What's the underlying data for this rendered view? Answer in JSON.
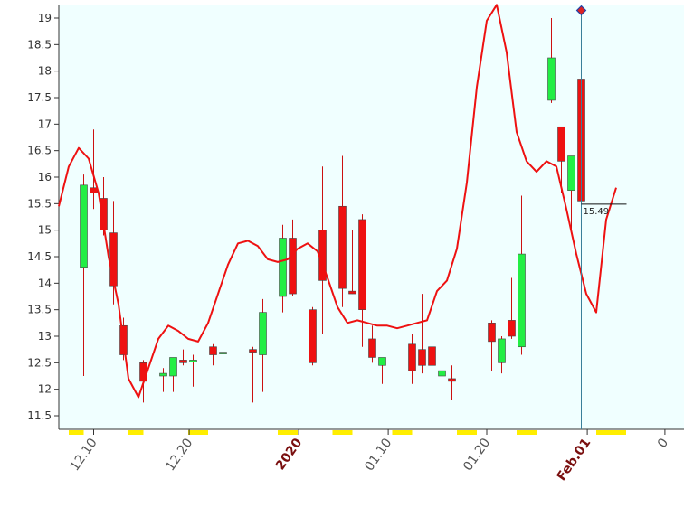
{
  "colors": {
    "plot_bg": "#f0ffff",
    "axis": "#333333",
    "up": "#22ee44",
    "down": "#ee1111",
    "wick": "#cc1111",
    "ma_line": "#ee1111",
    "cursor_line": "#3a7f9a",
    "marker": "#dd2222",
    "marker_edge": "#2244aa",
    "highlight": "#ffee00"
  },
  "chart_data": {
    "type": "candlestick",
    "title": "",
    "xlabel": "",
    "ylabel": "",
    "ylim": [
      11.25,
      19.25
    ],
    "y_ticks": [
      11.5,
      12,
      12.5,
      13,
      13.5,
      14,
      14.5,
      15,
      15.5,
      16,
      16.5,
      17,
      17.5,
      18,
      18.5,
      19
    ],
    "y_tick_labels": [
      "11.5",
      "12",
      "12.5",
      "13",
      "13.5",
      "14",
      "14.5",
      "15",
      "15.5",
      "16",
      "16.5",
      "17",
      "17.5",
      "18",
      "18.5",
      "19"
    ],
    "x_ticks": [
      {
        "label": "12.10",
        "major": false
      },
      {
        "label": "12.20",
        "major": false
      },
      {
        "label": "2020",
        "major": true
      },
      {
        "label": "01.10",
        "major": false
      },
      {
        "label": "01.20",
        "major": false
      },
      {
        "label": "Feb.01",
        "major": true
      },
      {
        "label": "0",
        "major": false
      }
    ],
    "candles": [
      {
        "open": 14.3,
        "high": 16.05,
        "low": 12.25,
        "close": 15.85
      },
      {
        "open": 15.8,
        "high": 16.9,
        "low": 15.4,
        "close": 15.7
      },
      {
        "open": 15.6,
        "high": 16.0,
        "low": 14.9,
        "close": 15.0
      },
      {
        "open": 14.95,
        "high": 15.55,
        "low": 13.6,
        "close": 13.95
      },
      {
        "open": 13.2,
        "high": 13.35,
        "low": 12.55,
        "close": 12.65
      },
      {
        "open": 12.5,
        "high": 12.55,
        "low": 11.75,
        "close": 12.15
      },
      {
        "open": 12.25,
        "high": 12.4,
        "low": 11.95,
        "close": 12.3
      },
      {
        "open": 12.25,
        "high": 12.6,
        "low": 11.95,
        "close": 12.6
      },
      {
        "open": 12.55,
        "high": 12.75,
        "low": 12.45,
        "close": 12.5
      },
      {
        "open": 12.55,
        "high": 12.65,
        "low": 12.05,
        "close": 12.55
      },
      {
        "open": 12.8,
        "high": 12.85,
        "low": 12.45,
        "close": 12.65
      },
      {
        "open": 12.7,
        "high": 12.8,
        "low": 12.55,
        "close": 12.7
      },
      {
        "open": 12.75,
        "high": 12.8,
        "low": 11.75,
        "close": 12.7
      },
      {
        "open": 12.65,
        "high": 13.7,
        "low": 11.95,
        "close": 13.45
      },
      {
        "open": 13.75,
        "high": 15.1,
        "low": 13.45,
        "close": 14.85
      },
      {
        "open": 14.85,
        "high": 15.2,
        "low": 13.75,
        "close": 13.8
      },
      {
        "open": 13.5,
        "high": 13.55,
        "low": 12.45,
        "close": 12.5
      },
      {
        "open": 15.0,
        "high": 16.2,
        "low": 13.05,
        "close": 14.05
      },
      {
        "open": 15.45,
        "high": 16.4,
        "low": 13.55,
        "close": 13.9
      },
      {
        "open": 13.85,
        "high": 15.0,
        "low": 13.8,
        "close": 13.8
      },
      {
        "open": 15.2,
        "high": 15.3,
        "low": 12.8,
        "close": 13.5
      },
      {
        "open": 12.95,
        "high": 13.2,
        "low": 12.5,
        "close": 12.6
      },
      {
        "open": 12.45,
        "high": 12.6,
        "low": 12.1,
        "close": 12.6
      },
      {
        "open": 12.85,
        "high": 13.05,
        "low": 12.1,
        "close": 12.35
      },
      {
        "open": 12.75,
        "high": 13.8,
        "low": 12.3,
        "close": 12.45
      },
      {
        "open": 12.8,
        "high": 12.85,
        "low": 11.95,
        "close": 12.45
      },
      {
        "open": 12.25,
        "high": 12.4,
        "low": 11.8,
        "close": 12.35
      },
      {
        "open": 12.2,
        "high": 12.45,
        "low": 11.8,
        "close": 12.15
      },
      {
        "open": 13.25,
        "high": 13.3,
        "low": 12.35,
        "close": 12.9
      },
      {
        "open": 12.5,
        "high": 13.0,
        "low": 12.3,
        "close": 12.95
      },
      {
        "open": 13.3,
        "high": 14.1,
        "low": 12.95,
        "close": 13.0
      },
      {
        "open": 12.8,
        "high": 15.65,
        "low": 12.65,
        "close": 14.55
      },
      {
        "open": 17.45,
        "high": 19.0,
        "low": 17.4,
        "close": 18.25
      },
      {
        "open": 16.95,
        "high": 16.95,
        "low": 15.7,
        "close": 16.3
      },
      {
        "open": 15.75,
        "high": 16.4,
        "low": 14.95,
        "close": 16.4
      },
      {
        "open": 17.85,
        "high": 18.3,
        "low": 15.5,
        "close": 15.55
      }
    ],
    "candle_slots": [
      2,
      3,
      4,
      5,
      6,
      8,
      10,
      11,
      12,
      13,
      15,
      16,
      19,
      20,
      22,
      23,
      25,
      26,
      28,
      29,
      30,
      31,
      32,
      35,
      36,
      37,
      38,
      39,
      43,
      44,
      45,
      46,
      49,
      50,
      51,
      52
    ],
    "x_slot_range": [
      -0.5,
      59.0
    ],
    "x_tick_slots": [
      3.0,
      12.6,
      23.6,
      32.6,
      42.5,
      52.6,
      60.4
    ],
    "moving_average": [
      [
        -0.5,
        15.45
      ],
      [
        0.5,
        16.2
      ],
      [
        1.5,
        16.55
      ],
      [
        2.5,
        16.35
      ],
      [
        3.5,
        15.7
      ],
      [
        4.5,
        14.5
      ],
      [
        5.5,
        13.6
      ],
      [
        6.5,
        12.2
      ],
      [
        7.5,
        11.85
      ],
      [
        8.5,
        12.4
      ],
      [
        9.5,
        12.95
      ],
      [
        10.5,
        13.2
      ],
      [
        11.5,
        13.1
      ],
      [
        12.5,
        12.95
      ],
      [
        13.5,
        12.9
      ],
      [
        14.5,
        13.25
      ],
      [
        15.5,
        13.8
      ],
      [
        16.5,
        14.35
      ],
      [
        17.5,
        14.75
      ],
      [
        18.5,
        14.8
      ],
      [
        19.5,
        14.7
      ],
      [
        20.5,
        14.45
      ],
      [
        21.5,
        14.4
      ],
      [
        22.5,
        14.45
      ],
      [
        23.5,
        14.65
      ],
      [
        24.5,
        14.75
      ],
      [
        25.5,
        14.6
      ],
      [
        26.5,
        14.1
      ],
      [
        27.5,
        13.55
      ],
      [
        28.5,
        13.25
      ],
      [
        29.5,
        13.3
      ],
      [
        30.5,
        13.25
      ],
      [
        31.5,
        13.2
      ],
      [
        32.5,
        13.2
      ],
      [
        33.5,
        13.15
      ],
      [
        34.5,
        13.2
      ],
      [
        35.5,
        13.25
      ],
      [
        36.5,
        13.3
      ],
      [
        37.5,
        13.85
      ],
      [
        38.5,
        14.05
      ],
      [
        39.5,
        14.65
      ],
      [
        40.5,
        15.9
      ],
      [
        41.5,
        17.7
      ],
      [
        42.5,
        18.95
      ],
      [
        43.5,
        19.25
      ],
      [
        44.5,
        18.35
      ],
      [
        45.5,
        16.85
      ],
      [
        46.5,
        16.3
      ],
      [
        47.5,
        16.1
      ],
      [
        48.5,
        16.3
      ],
      [
        49.5,
        16.2
      ],
      [
        50.5,
        15.4
      ],
      [
        51.5,
        14.55
      ],
      [
        52.5,
        13.8
      ],
      [
        53.5,
        13.45
      ],
      [
        54.5,
        15.2
      ],
      [
        55.5,
        15.8
      ]
    ],
    "crosshair_slot": 52,
    "current_price": 15.49,
    "current_price_label": "15.49",
    "highlight_slots": [
      [
        0.5,
        2.0
      ],
      [
        6.5,
        8.0
      ],
      [
        12.5,
        14.5
      ],
      [
        21.5,
        23.5
      ],
      [
        27.0,
        29.0
      ],
      [
        33.0,
        35.0
      ],
      [
        39.5,
        41.5
      ],
      [
        45.5,
        47.5
      ],
      [
        53.5,
        56.5
      ]
    ],
    "legend": "none",
    "grid": false
  }
}
